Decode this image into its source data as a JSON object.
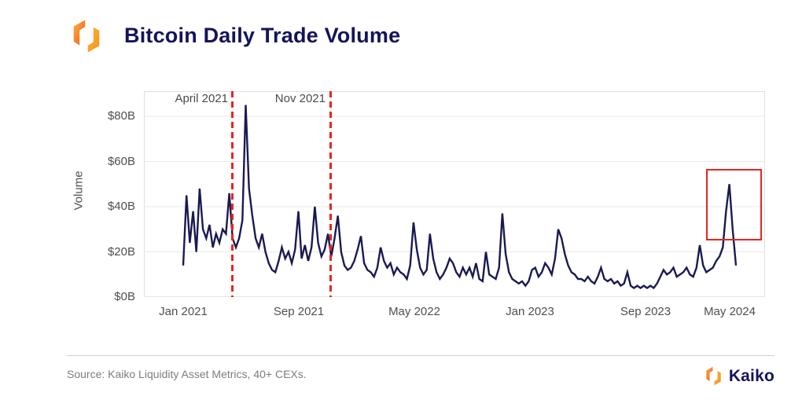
{
  "header": {
    "title": "Bitcoin Daily Trade Volume"
  },
  "colors": {
    "title_navy": "#14145a",
    "series_navy": "#1a1a52",
    "annotation_red": "#e8251f",
    "grid_gray": "#e9e9e9",
    "axis_border_gray": "#e0e0e0",
    "axis_text_gray": "#4f4f4f",
    "footer_text_gray": "#7d7d7d",
    "brand_orange": "#f7941d",
    "brand_orange_dark": "#f15a24",
    "brand_orange_light": "#fbb03b"
  },
  "chart_data": {
    "type": "line",
    "title": "Bitcoin Daily Trade Volume",
    "xlabel": "",
    "ylabel": "Volume",
    "ylim": [
      0,
      90
    ],
    "grid": "horizontal",
    "legend": "none",
    "y_ticks": [
      {
        "label": "$80B",
        "value": 80
      },
      {
        "label": "$60B",
        "value": 60
      },
      {
        "label": "$40B",
        "value": 40
      },
      {
        "label": "$20B",
        "value": 20
      },
      {
        "label": "$0B",
        "value": 0
      }
    ],
    "x_ticks": [
      "Jan 2021",
      "Sep 2021",
      "May 2022",
      "Jan 2023",
      "Sep 2023",
      "May 2024"
    ],
    "annotations": [
      {
        "type": "vline-dashed",
        "label": "April 2021",
        "date": "2021-04-14"
      },
      {
        "type": "vline-dashed",
        "label": "Nov 2021",
        "date": "2021-11-10"
      },
      {
        "type": "highlight-box",
        "label": "",
        "note": "March 2024 volume spike ~ $50B"
      }
    ],
    "series": [
      {
        "name": "Bitcoin daily trade volume ($B), weekly approximation read from chart",
        "x_start": "2021-01-01",
        "interval_days": 7,
        "values": [
          14,
          45,
          24,
          38,
          20,
          48,
          30,
          26,
          32,
          22,
          28,
          24,
          30,
          28,
          46,
          26,
          22,
          26,
          34,
          85,
          48,
          36,
          26,
          22,
          28,
          20,
          15,
          12,
          11,
          16,
          22,
          17,
          20,
          15,
          21,
          38,
          17,
          23,
          16,
          22,
          40,
          24,
          18,
          21,
          28,
          18,
          26,
          36,
          20,
          14,
          12,
          13,
          16,
          21,
          27,
          15,
          12,
          11,
          9,
          13,
          22,
          16,
          13,
          15,
          10,
          13,
          11,
          10,
          8,
          14,
          33,
          21,
          13,
          10,
          12,
          28,
          17,
          11,
          8,
          10,
          13,
          17,
          15,
          11,
          9,
          13,
          10,
          13,
          9,
          15,
          8,
          7,
          20,
          10,
          9,
          8,
          13,
          37,
          19,
          11,
          8,
          7,
          6,
          7,
          5,
          7,
          12,
          13,
          9,
          11,
          15,
          13,
          10,
          17,
          30,
          26,
          19,
          14,
          11,
          10,
          8,
          8,
          7,
          9,
          7,
          6,
          9,
          13,
          8,
          7,
          8,
          6,
          7,
          5,
          6,
          11,
          5,
          4,
          5,
          4,
          5,
          4,
          5,
          4,
          6,
          9,
          12,
          10,
          11,
          13,
          9,
          10,
          11,
          13,
          10,
          9,
          13,
          23,
          14,
          11,
          12,
          13,
          16,
          18,
          22,
          38,
          50,
          30,
          14
        ]
      }
    ]
  },
  "footer": {
    "source": "Source: Kaiko Liquidity Asset Metrics, 40+ CEXs.",
    "brand": "Kaiko"
  }
}
